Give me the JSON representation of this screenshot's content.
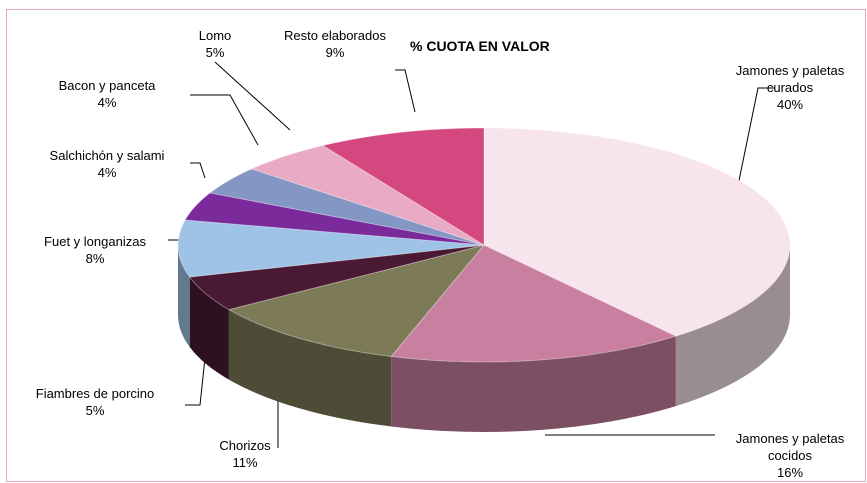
{
  "chart_data": {
    "type": "pie",
    "title": "% CUOTA EN VALOR",
    "categories": [
      "Jamones y paletas curados",
      "Jamones y paletas cocidos",
      "Chorizos",
      "Fiambres de porcino",
      "Fuet y longanizas",
      "Salchichón y salami",
      "Bacon y panceta",
      "Lomo",
      "Resto elaborados"
    ],
    "values": [
      40,
      16,
      11,
      5,
      8,
      4,
      4,
      5,
      9
    ],
    "value_labels": [
      "40%",
      "16%",
      "11%",
      "5%",
      "8%",
      "4%",
      "4%",
      "5%",
      "9%"
    ],
    "colors": [
      "#f7e4ec",
      "#c97f9f",
      "#7d7a58",
      "#4a1a34",
      "#9ec3e6",
      "#7a2a9a",
      "#8496c4",
      "#e8aac4",
      "#d44880"
    ]
  }
}
